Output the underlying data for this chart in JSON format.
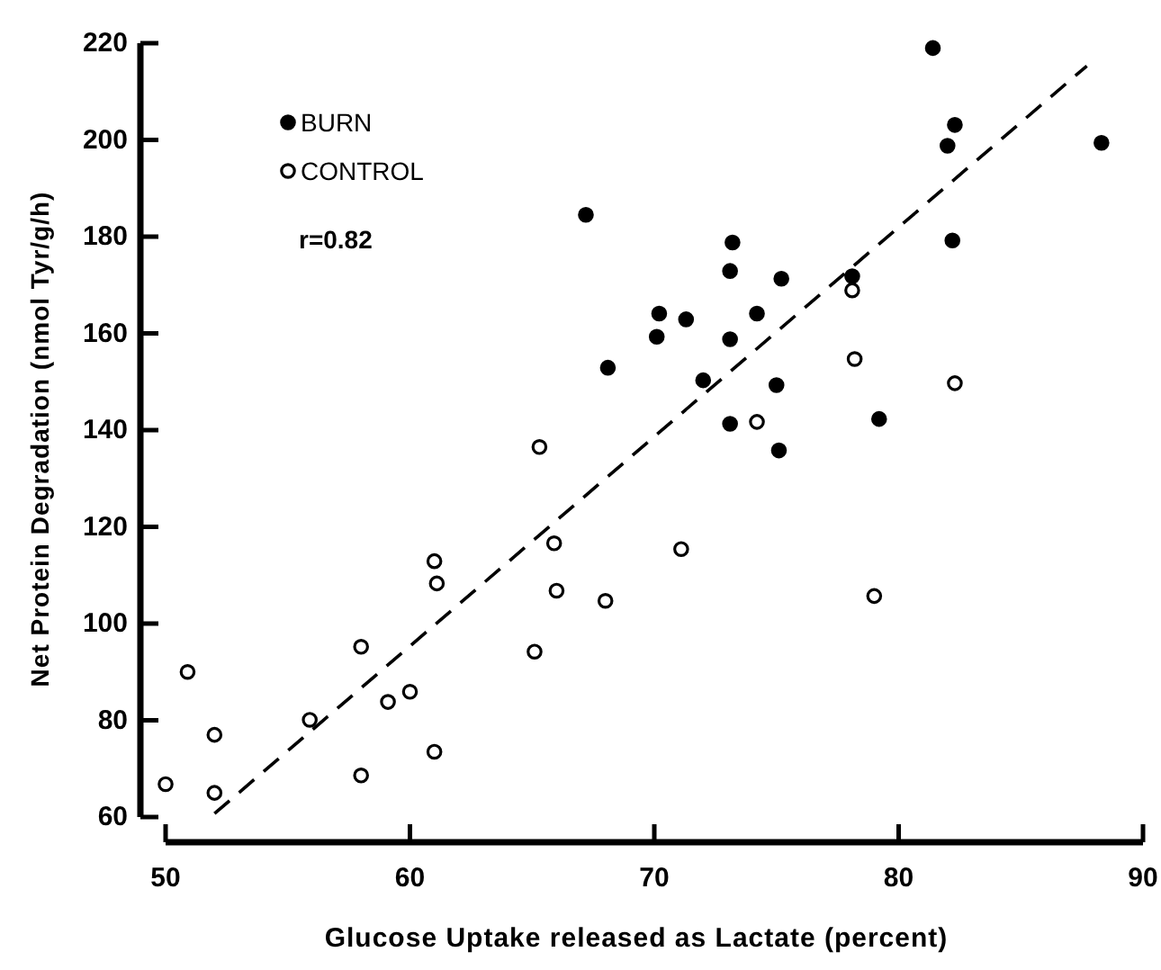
{
  "chart_data": {
    "type": "scatter",
    "xlabel": "Glucose Uptake released as Lactate (percent)",
    "ylabel": "Net Protein Degradation (nmol Tyr/g/h)",
    "xlim": [
      50,
      90
    ],
    "ylim": [
      60,
      220
    ],
    "xticks": [
      50,
      60,
      70,
      80,
      90
    ],
    "yticks": [
      60,
      80,
      100,
      120,
      140,
      160,
      180,
      200,
      220
    ],
    "grid": false,
    "legend": "top left",
    "annotations": [
      "r=0.82"
    ],
    "series": [
      {
        "name": "BURN",
        "marker": "circle",
        "color": "#000000",
        "x": [
          67.2,
          70.2,
          70.1,
          68.1,
          81.4,
          82.3,
          82.0,
          88.3,
          73.2,
          73.1,
          75.2,
          78.1,
          82.2,
          71.3,
          74.2,
          73.1,
          72.0,
          75.0,
          73.1,
          79.2,
          75.1
        ],
        "values": [
          184.5,
          164.1,
          159.3,
          152.9,
          219,
          203.1,
          198.8,
          199.4,
          178.8,
          172.9,
          171.3,
          171.8,
          179.2,
          162.9,
          164.1,
          158.8,
          150.3,
          149.3,
          141.3,
          142.3,
          135.8
        ]
      },
      {
        "name": "CONTROL",
        "marker": "circle",
        "color": "#ffffff",
        "x": [
          78.1,
          78.2,
          82.3,
          74.2,
          65.3,
          50.9,
          52.0,
          52.0,
          55.9,
          58.0,
          58.0,
          59.1,
          60.0,
          61.0,
          61.1,
          61.0,
          65.1,
          65.9,
          66.0,
          68.0,
          71.1,
          79.0,
          50
        ],
        "values": [
          168.9,
          154.7,
          149.7,
          141.7,
          136.5,
          90.0,
          77.0,
          65.0,
          80.1,
          95.2,
          68.6,
          83.8,
          85.9,
          112.9,
          108.3,
          73.5,
          94.2,
          116.6,
          106.8,
          104.7,
          115.4,
          105.7,
          66.8
        ]
      },
      {
        "type": "line",
        "line_style": "dashed",
        "color": "#000000",
        "x": [
          52,
          87.7
        ],
        "values": [
          60.7,
          215.3
        ]
      }
    ]
  }
}
